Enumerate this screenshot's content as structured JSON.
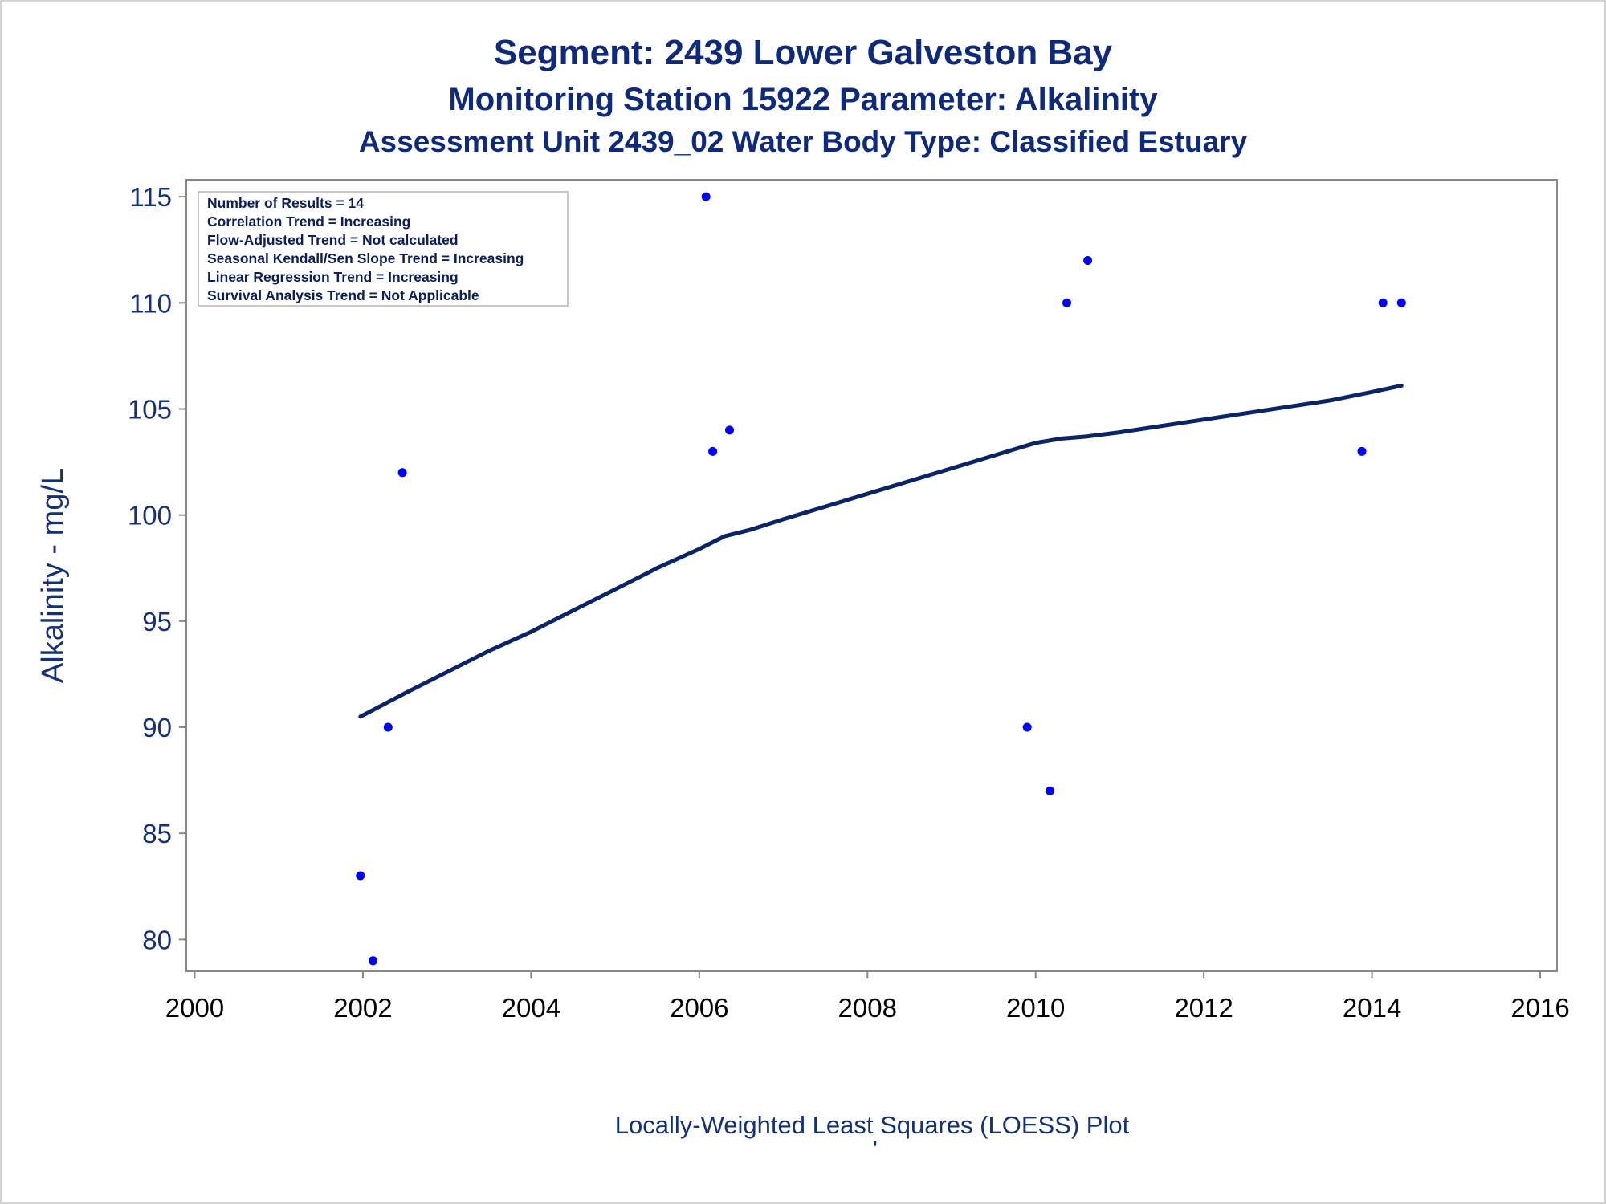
{
  "chart_data": {
    "type": "scatter",
    "title": "Segment: 2439  Lower Galveston Bay",
    "subtitle": "Monitoring Station 15922 Parameter: Alkalinity",
    "subtitle2": "Assessment Unit 2439_02   Water Body Type: Classified Estuary",
    "xlabel": "",
    "ylabel": "Alkalinity - mg/L",
    "footnote": "Locally-Weighted Least Squares (LOESS) Plot",
    "footnote_mark": "'",
    "xlim": [
      1999.9,
      2016.2
    ],
    "ylim": [
      78.5,
      115.8
    ],
    "x_ticks": [
      2000,
      2002,
      2004,
      2006,
      2008,
      2010,
      2012,
      2014,
      2016
    ],
    "y_ticks": [
      80,
      85,
      90,
      95,
      100,
      105,
      110,
      115
    ],
    "x_tick_labels": [
      "2000",
      "2002",
      "2004",
      "2006",
      "2008",
      "2010",
      "2012",
      "2014",
      "2016"
    ],
    "y_tick_labels": [
      "80",
      "85",
      "90",
      "95",
      "100",
      "105",
      "110",
      "115"
    ],
    "grid": false,
    "legend": "none",
    "stats_box": {
      "position": "top-left",
      "lines": [
        "Number of Results = 14",
        "Correlation Trend = Increasing",
        "Flow-Adjusted Trend = Not calculated",
        "Seasonal Kendall/Sen Slope Trend = Increasing",
        "Linear Regression Trend = Increasing",
        "Survival Analysis Trend = Not Applicable"
      ]
    },
    "series": [
      {
        "kind": "points",
        "points": [
          {
            "x": 2001.97,
            "y": 83
          },
          {
            "x": 2002.12,
            "y": 79
          },
          {
            "x": 2002.3,
            "y": 90
          },
          {
            "x": 2002.47,
            "y": 102
          },
          {
            "x": 2006.08,
            "y": 115
          },
          {
            "x": 2006.16,
            "y": 103
          },
          {
            "x": 2006.36,
            "y": 104
          },
          {
            "x": 2009.9,
            "y": 90
          },
          {
            "x": 2010.17,
            "y": 87
          },
          {
            "x": 2010.37,
            "y": 110
          },
          {
            "x": 2010.62,
            "y": 112
          },
          {
            "x": 2013.88,
            "y": 103
          },
          {
            "x": 2014.13,
            "y": 110
          },
          {
            "x": 2014.35,
            "y": 110
          }
        ]
      },
      {
        "kind": "loess",
        "points": [
          {
            "x": 2001.97,
            "y": 90.5
          },
          {
            "x": 2002.5,
            "y": 91.6
          },
          {
            "x": 2003.0,
            "y": 92.6
          },
          {
            "x": 2003.5,
            "y": 93.6
          },
          {
            "x": 2004.0,
            "y": 94.5
          },
          {
            "x": 2004.5,
            "y": 95.5
          },
          {
            "x": 2005.0,
            "y": 96.5
          },
          {
            "x": 2005.5,
            "y": 97.5
          },
          {
            "x": 2006.0,
            "y": 98.4
          },
          {
            "x": 2006.3,
            "y": 99.0
          },
          {
            "x": 2006.6,
            "y": 99.3
          },
          {
            "x": 2007.0,
            "y": 99.8
          },
          {
            "x": 2007.5,
            "y": 100.4
          },
          {
            "x": 2008.0,
            "y": 101.0
          },
          {
            "x": 2008.5,
            "y": 101.6
          },
          {
            "x": 2009.0,
            "y": 102.2
          },
          {
            "x": 2009.5,
            "y": 102.8
          },
          {
            "x": 2010.0,
            "y": 103.4
          },
          {
            "x": 2010.3,
            "y": 103.6
          },
          {
            "x": 2010.6,
            "y": 103.7
          },
          {
            "x": 2011.0,
            "y": 103.9
          },
          {
            "x": 2011.5,
            "y": 104.2
          },
          {
            "x": 2012.0,
            "y": 104.5
          },
          {
            "x": 2012.5,
            "y": 104.8
          },
          {
            "x": 2013.0,
            "y": 105.1
          },
          {
            "x": 2013.5,
            "y": 105.4
          },
          {
            "x": 2014.0,
            "y": 105.8
          },
          {
            "x": 2014.35,
            "y": 106.1
          }
        ]
      }
    ],
    "colors": {
      "title": "#0f2a7a",
      "text": "#14307a",
      "points": "#0000ff",
      "loess_line": "#0b2468",
      "axis": "#888888",
      "stats_border": "#c8c8c8"
    }
  }
}
